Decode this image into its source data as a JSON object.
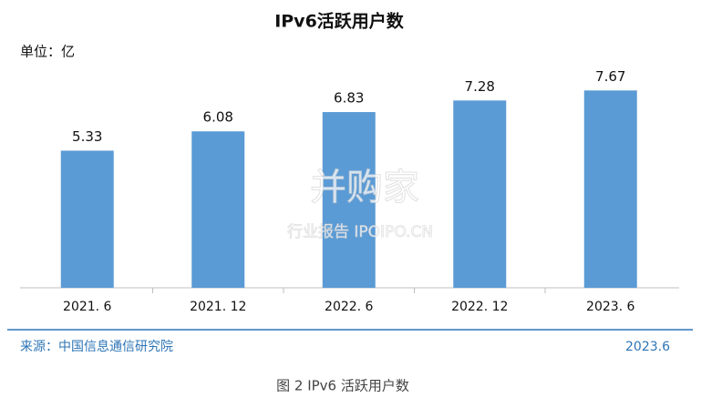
{
  "chart_data": {
    "type": "bar",
    "title": "IPv6活跃用户数",
    "unit_label": "单位：亿",
    "categories": [
      "2021. 6",
      "2021. 12",
      "2022. 6",
      "2022. 12",
      "2023. 6"
    ],
    "values": [
      5.33,
      6.08,
      6.83,
      7.28,
      7.67
    ],
    "value_labels": [
      "5.33",
      "6.08",
      "6.83",
      "7.28",
      "7.67"
    ],
    "color": "#5b9bd5",
    "ylim": [
      0,
      8
    ],
    "watermark": [
      "并购家",
      "行业报告 IPOIPO.CN"
    ],
    "source": "来源：中国信息通信研究院",
    "date": "2023.6",
    "caption": "图 2  IPv6 活跃用户数"
  }
}
